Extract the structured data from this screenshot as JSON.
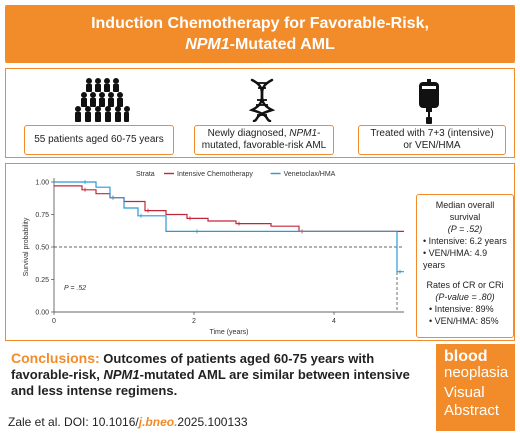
{
  "title": {
    "line1": "Induction Chemotherapy for Favorable-Risk,",
    "line2_italic": "NPM1",
    "line2_rest": "-Mutated AML"
  },
  "summary": {
    "patients": "55 patients aged 60-75 years",
    "diagnosis_pre": "Newly diagnosed, ",
    "diagnosis_italic": "NPM1",
    "diagnosis_post": "-mutated, favorable-risk AML",
    "treatment": "Treated with 7+3 (intensive) or VEN/HMA",
    "icons": [
      "people-group-icon",
      "dna-icon",
      "iv-bag-icon"
    ]
  },
  "chart_data": {
    "type": "line",
    "ylabel": "Survival probability",
    "xlabel": "Time (years)",
    "xlim": [
      0,
      5
    ],
    "ylim": [
      0,
      1
    ],
    "xticks": [
      "0",
      "2",
      "4"
    ],
    "yticks": [
      "0.00",
      "0.25",
      "0.50",
      "0.75",
      "1.00"
    ],
    "legend_title": "Strata",
    "legend_position": "top",
    "pvalue_label": "P = .52",
    "reference_line_y": 0.5,
    "series": [
      {
        "name": "Intensive Chemotherapy",
        "color": "#c0283a",
        "x": [
          0,
          0.4,
          0.6,
          0.8,
          1.0,
          1.3,
          1.6,
          1.9,
          2.2,
          2.6,
          3.1,
          3.5,
          4.9,
          5.0
        ],
        "y": [
          0.97,
          0.94,
          0.91,
          0.88,
          0.85,
          0.78,
          0.75,
          0.72,
          0.7,
          0.68,
          0.66,
          0.62,
          0.62,
          0.62
        ]
      },
      {
        "name": "Venetoclax/HMA",
        "color": "#2a9ad6",
        "x": [
          0,
          0.4,
          0.6,
          0.8,
          1.0,
          1.2,
          1.6,
          2.0,
          4.9,
          4.9,
          5.0
        ],
        "y": [
          1.0,
          1.0,
          0.96,
          0.88,
          0.8,
          0.74,
          0.62,
          0.62,
          0.62,
          0.31,
          0.31
        ]
      }
    ]
  },
  "stats": {
    "os_title": "Median overall survival",
    "os_p": "(P = .52)",
    "os_intensive": "• Intensive: 6.2 years",
    "os_ven": "• VEN/HMA: 4.9 years",
    "cr_title": "Rates of CR or CRi",
    "cr_p": "(P-value = .80)",
    "cr_intensive": "• Intensive: 89%",
    "cr_ven": "• VEN/HMA: 85%"
  },
  "conclusion": {
    "label": "Conclusions:",
    "text_pre": " Outcomes of patients aged 60-75 years with favorable-risk, ",
    "text_italic": "NPM1",
    "text_post": "-mutated AML are similar between intensive and less intense regimens."
  },
  "citation": {
    "prefix": "Zale et al. DOI: 10.1016/",
    "accent": "j.bneo.",
    "suffix": "2025.100133"
  },
  "logo": {
    "line1": "blood",
    "line2": "neoplasia",
    "line3": "Visual",
    "line4": "Abstract"
  },
  "colors": {
    "accent": "#f28c2b",
    "intensive": "#c0283a",
    "venetoclax": "#2a9ad6"
  }
}
